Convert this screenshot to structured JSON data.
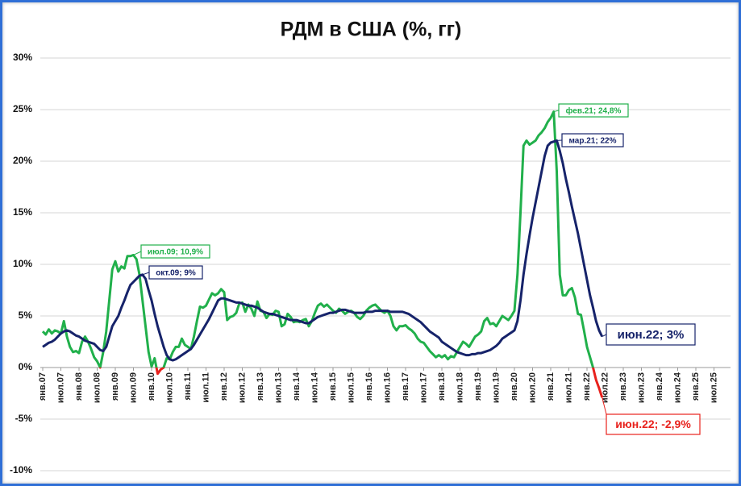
{
  "chart_data": {
    "type": "line",
    "title": "РДМ в США (%, гг)",
    "categories": [
      "янв.07",
      null,
      null,
      null,
      null,
      null,
      "июл.07",
      null,
      null,
      null,
      null,
      null,
      "янв.08",
      null,
      null,
      null,
      null,
      null,
      "июл.08",
      null,
      null,
      null,
      null,
      null,
      "янв.09",
      null,
      null,
      null,
      null,
      null,
      "июл.09",
      null,
      null,
      null,
      null,
      null,
      "янв.10",
      null,
      null,
      null,
      null,
      null,
      "июл.10",
      null,
      null,
      null,
      null,
      null,
      "янв.11",
      null,
      null,
      null,
      null,
      null,
      "июл.11",
      null,
      null,
      null,
      null,
      null,
      "янв.12",
      null,
      null,
      null,
      null,
      null,
      "июл.12",
      null,
      null,
      null,
      null,
      null,
      "янв.13",
      null,
      null,
      null,
      null,
      null,
      "июл.13",
      null,
      null,
      null,
      null,
      null,
      "янв.14",
      null,
      null,
      null,
      null,
      null,
      "июл.14",
      null,
      null,
      null,
      null,
      null,
      "янв.15",
      null,
      null,
      null,
      null,
      null,
      "июл.15",
      null,
      null,
      null,
      null,
      null,
      "янв.16",
      null,
      null,
      null,
      null,
      null,
      "июл.16",
      null,
      null,
      null,
      null,
      null,
      "янв.17",
      null,
      null,
      null,
      null,
      null,
      "июл.17",
      null,
      null,
      null,
      null,
      null,
      "янв.18",
      null,
      null,
      null,
      null,
      null,
      "июл.18",
      null,
      null,
      null,
      null,
      null,
      "янв.19",
      null,
      null,
      null,
      null,
      null,
      "июл.19",
      null,
      null,
      null,
      null,
      null,
      "янв.20",
      null,
      null,
      null,
      null,
      null,
      "июл.20",
      null,
      null,
      null,
      null,
      null,
      "янв.21",
      null,
      null,
      null,
      null,
      null,
      "июл.21",
      null,
      null,
      null,
      null,
      null,
      "янв.22",
      null,
      null,
      null,
      null,
      null,
      "июл.22",
      null,
      null,
      null,
      null,
      null,
      "янв.23",
      null,
      null,
      null,
      null,
      null,
      "июл.23",
      null,
      null,
      null,
      null,
      null,
      "янв.24",
      null,
      null,
      null,
      null,
      null,
      "июл.24",
      null,
      null,
      null,
      null,
      null,
      "янв.25",
      null,
      null,
      null,
      null,
      null,
      "июл.25",
      null,
      null,
      null,
      null,
      null
    ],
    "series": [
      {
        "color": "#21b04b",
        "negative_color": "#e8211c",
        "values": [
          3.5,
          3.2,
          3.7,
          3.3,
          3.6,
          3.5,
          3.3,
          4.5,
          3.0,
          2.0,
          1.5,
          1.6,
          1.4,
          2.5,
          3.0,
          2.5,
          1.8,
          1.0,
          0.6,
          0.0,
          1.5,
          3.5,
          6.5,
          9.5,
          10.3,
          9.3,
          9.8,
          9.6,
          10.8,
          10.8,
          10.9,
          10.5,
          9.0,
          6.5,
          4.0,
          1.5,
          0.1,
          0.9,
          -0.6,
          -0.2,
          0.0,
          0.9,
          0.8,
          1.5,
          2.0,
          2.0,
          2.8,
          2.2,
          2.0,
          1.8,
          3.0,
          4.5,
          5.9,
          5.8,
          6.0,
          6.6,
          7.2,
          7.0,
          7.2,
          7.6,
          7.3,
          4.6,
          4.9,
          5.0,
          5.3,
          6.2,
          6.3,
          5.4,
          6.1,
          5.7,
          5.0,
          6.4,
          5.5,
          5.4,
          4.8,
          5.2,
          5.1,
          5.5,
          5.4,
          4.0,
          4.2,
          5.2,
          4.9,
          4.4,
          4.5,
          4.4,
          4.6,
          4.7,
          4.0,
          4.5,
          5.3,
          6.0,
          6.2,
          5.9,
          6.1,
          5.8,
          5.5,
          5.3,
          5.7,
          5.5,
          5.2,
          5.4,
          5.5,
          5.3,
          4.9,
          4.7,
          5.0,
          5.5,
          5.8,
          6.0,
          6.1,
          5.8,
          5.5,
          5.3,
          5.5,
          5.0,
          4.0,
          3.6,
          4.0,
          4.0,
          4.1,
          3.8,
          3.6,
          3.3,
          2.8,
          2.5,
          2.4,
          2.0,
          1.6,
          1.3,
          1.0,
          1.2,
          1.0,
          1.2,
          0.8,
          1.1,
          1.0,
          1.5,
          2.0,
          2.5,
          2.3,
          2.0,
          2.5,
          3.0,
          3.2,
          3.5,
          4.5,
          4.8,
          4.2,
          4.3,
          4.0,
          4.5,
          5.0,
          4.8,
          4.6,
          5.0,
          5.5,
          9.0,
          15.0,
          21.5,
          22.0,
          21.6,
          21.8,
          22.0,
          22.5,
          22.8,
          23.2,
          23.8,
          24.2,
          24.8,
          19.0,
          9.0,
          7.0,
          7.0,
          7.5,
          7.7,
          6.8,
          5.2,
          5.1,
          3.6,
          2.0,
          1.0,
          0.0,
          -1.2,
          -2.0,
          -2.9,
          null,
          null,
          null,
          null,
          null,
          null,
          null,
          null,
          null,
          null,
          null,
          null,
          null,
          null,
          null,
          null,
          null,
          null,
          null,
          null,
          null,
          null,
          null,
          null,
          null,
          null,
          null,
          null,
          null,
          null,
          null,
          null,
          null,
          null,
          null,
          null,
          null,
          null,
          null,
          null,
          null,
          null
        ]
      },
      {
        "color": "#16236a",
        "values": [
          2.0,
          2.2,
          2.4,
          2.5,
          2.7,
          3.0,
          3.3,
          3.5,
          3.6,
          3.5,
          3.3,
          3.1,
          3.0,
          2.8,
          2.6,
          2.5,
          2.4,
          2.3,
          2.0,
          1.7,
          1.6,
          2.0,
          3.0,
          4.0,
          4.5,
          5.0,
          5.8,
          6.5,
          7.3,
          8.0,
          8.3,
          8.6,
          8.9,
          9.0,
          8.6,
          7.5,
          6.5,
          5.2,
          4.0,
          3.0,
          2.0,
          1.2,
          0.8,
          0.7,
          0.8,
          1.0,
          1.2,
          1.4,
          1.6,
          1.8,
          2.2,
          2.7,
          3.2,
          3.7,
          4.2,
          4.7,
          5.3,
          5.9,
          6.5,
          6.7,
          6.7,
          6.6,
          6.5,
          6.4,
          6.3,
          6.3,
          6.2,
          6.1,
          6.0,
          6.0,
          5.9,
          5.8,
          5.6,
          5.4,
          5.3,
          5.2,
          5.2,
          5.1,
          5.0,
          4.9,
          4.8,
          4.7,
          4.6,
          4.6,
          4.6,
          4.5,
          4.4,
          4.3,
          4.3,
          4.5,
          4.7,
          4.9,
          5.0,
          5.1,
          5.2,
          5.3,
          5.3,
          5.4,
          5.5,
          5.6,
          5.6,
          5.5,
          5.4,
          5.3,
          5.3,
          5.3,
          5.3,
          5.4,
          5.4,
          5.4,
          5.5,
          5.5,
          5.5,
          5.5,
          5.5,
          5.4,
          5.4,
          5.4,
          5.4,
          5.4,
          5.3,
          5.2,
          5.0,
          4.8,
          4.6,
          4.4,
          4.1,
          3.8,
          3.5,
          3.3,
          3.1,
          2.9,
          2.5,
          2.3,
          2.1,
          1.9,
          1.7,
          1.5,
          1.4,
          1.3,
          1.2,
          1.2,
          1.3,
          1.3,
          1.4,
          1.4,
          1.5,
          1.6,
          1.7,
          1.9,
          2.1,
          2.4,
          2.8,
          3.0,
          3.2,
          3.4,
          3.6,
          4.5,
          6.5,
          9.0,
          11.0,
          12.8,
          14.5,
          16.0,
          17.5,
          19.0,
          20.5,
          21.5,
          21.8,
          21.9,
          22.0,
          21.0,
          19.8,
          18.3,
          17.0,
          15.6,
          14.3,
          13.0,
          11.5,
          10.0,
          8.5,
          7.0,
          5.8,
          4.5,
          3.6,
          3.0,
          null,
          null,
          null,
          null,
          null,
          null,
          null,
          null,
          null,
          null,
          null,
          null,
          null,
          null,
          null,
          null,
          null,
          null,
          null,
          null,
          null,
          null,
          null,
          null,
          null,
          null,
          null,
          null,
          null,
          null,
          null,
          null,
          null,
          null,
          null,
          null,
          null,
          null,
          null,
          null,
          null,
          null
        ]
      }
    ],
    "ylim": [
      -10,
      30
    ],
    "yticks": [
      {
        "value": -10,
        "label": "-10%"
      },
      {
        "value": -5,
        "label": "-5%"
      },
      {
        "value": 0,
        "label": "0%"
      },
      {
        "value": 5,
        "label": "5%"
      },
      {
        "value": 10,
        "label": "10%"
      },
      {
        "value": 15,
        "label": "15%"
      },
      {
        "value": 20,
        "label": "20%"
      },
      {
        "value": 25,
        "label": "25%"
      },
      {
        "value": 30,
        "label": "30%"
      }
    ],
    "grid": true,
    "annotations": [
      {
        "text": "июл.09; 10,9%",
        "series": 0
      },
      {
        "text": "окт.09; 9%",
        "series": 1
      },
      {
        "text": "фев.21; 24,8%",
        "series": 0
      },
      {
        "text": "мар.21; 22%",
        "series": 1
      },
      {
        "text": "июн.22; 3%",
        "series": 1
      },
      {
        "text": "июн.22; -2,9%",
        "series": 0,
        "negative": true
      }
    ]
  }
}
